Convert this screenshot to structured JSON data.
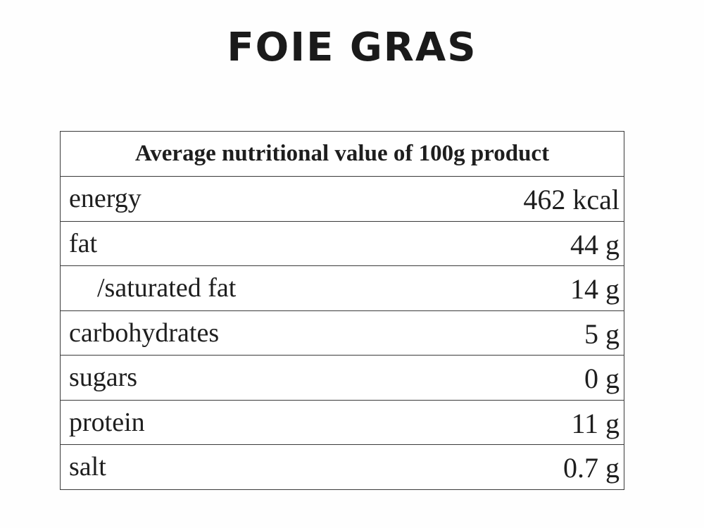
{
  "title": "FOIE GRAS",
  "table": {
    "header": "Average nutritional value of 100g product",
    "rows": [
      {
        "label": "energy",
        "value": "462 kcal"
      },
      {
        "label": "fat",
        "value": "44 g"
      },
      {
        "label": "/saturated fat",
        "value": "14 g"
      },
      {
        "label": "carbohydrates",
        "value": "5 g"
      },
      {
        "label": "sugars",
        "value": "0 g"
      },
      {
        "label": "protein",
        "value": "11 g"
      },
      {
        "label": "salt",
        "value": "0.7 g"
      }
    ]
  },
  "colors": {
    "text": "#1e1e1e",
    "border": "#3a3a3a",
    "background": "#ffffff"
  }
}
